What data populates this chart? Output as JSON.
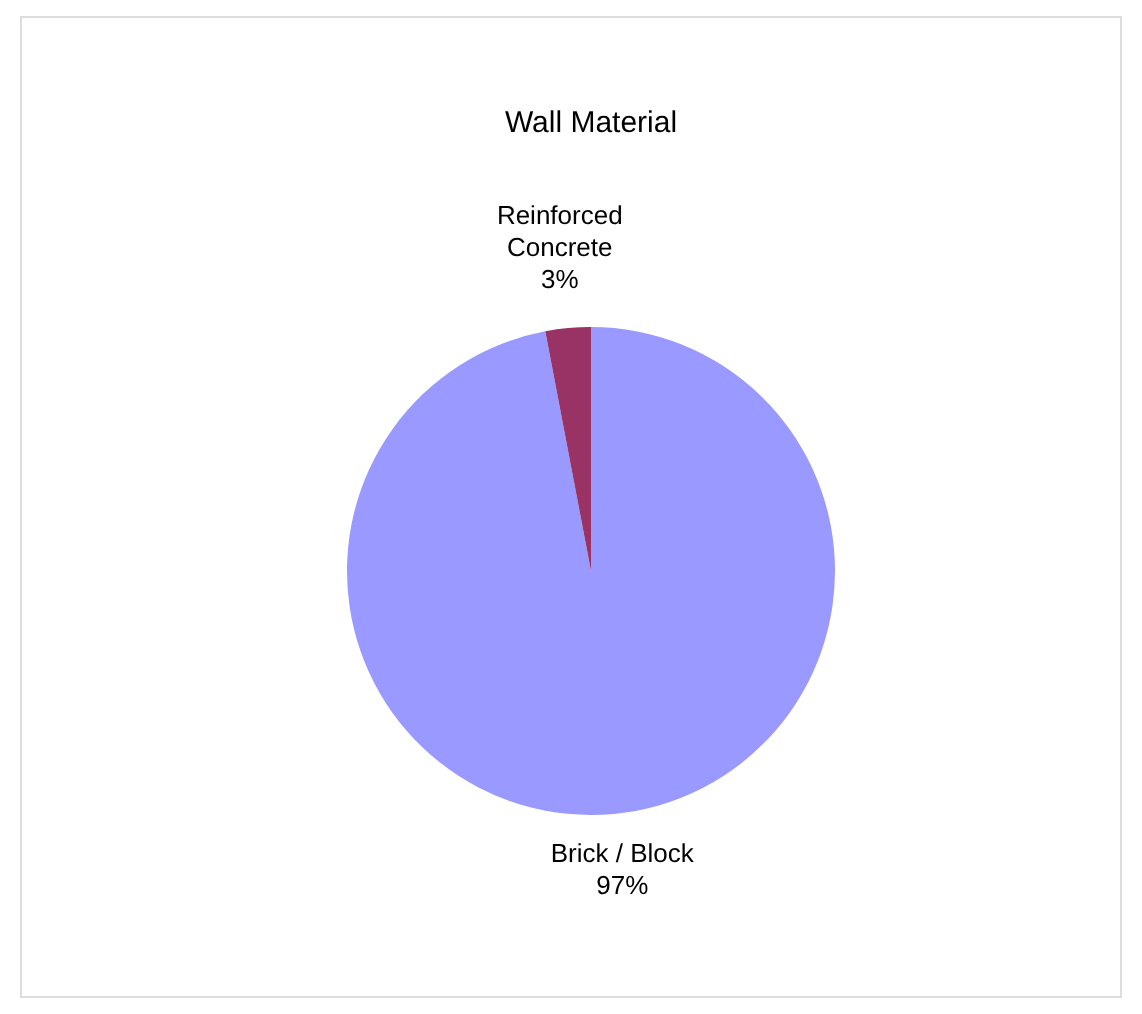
{
  "chart_data": {
    "type": "pie",
    "title": "Wall Material",
    "categories": [
      "Brick / Block",
      "Reinforced Concrete"
    ],
    "values": [
      97,
      3
    ],
    "colors": [
      "#9999ff",
      "#993366"
    ],
    "value_labels": [
      "97%",
      "3%"
    ],
    "legend": false
  }
}
